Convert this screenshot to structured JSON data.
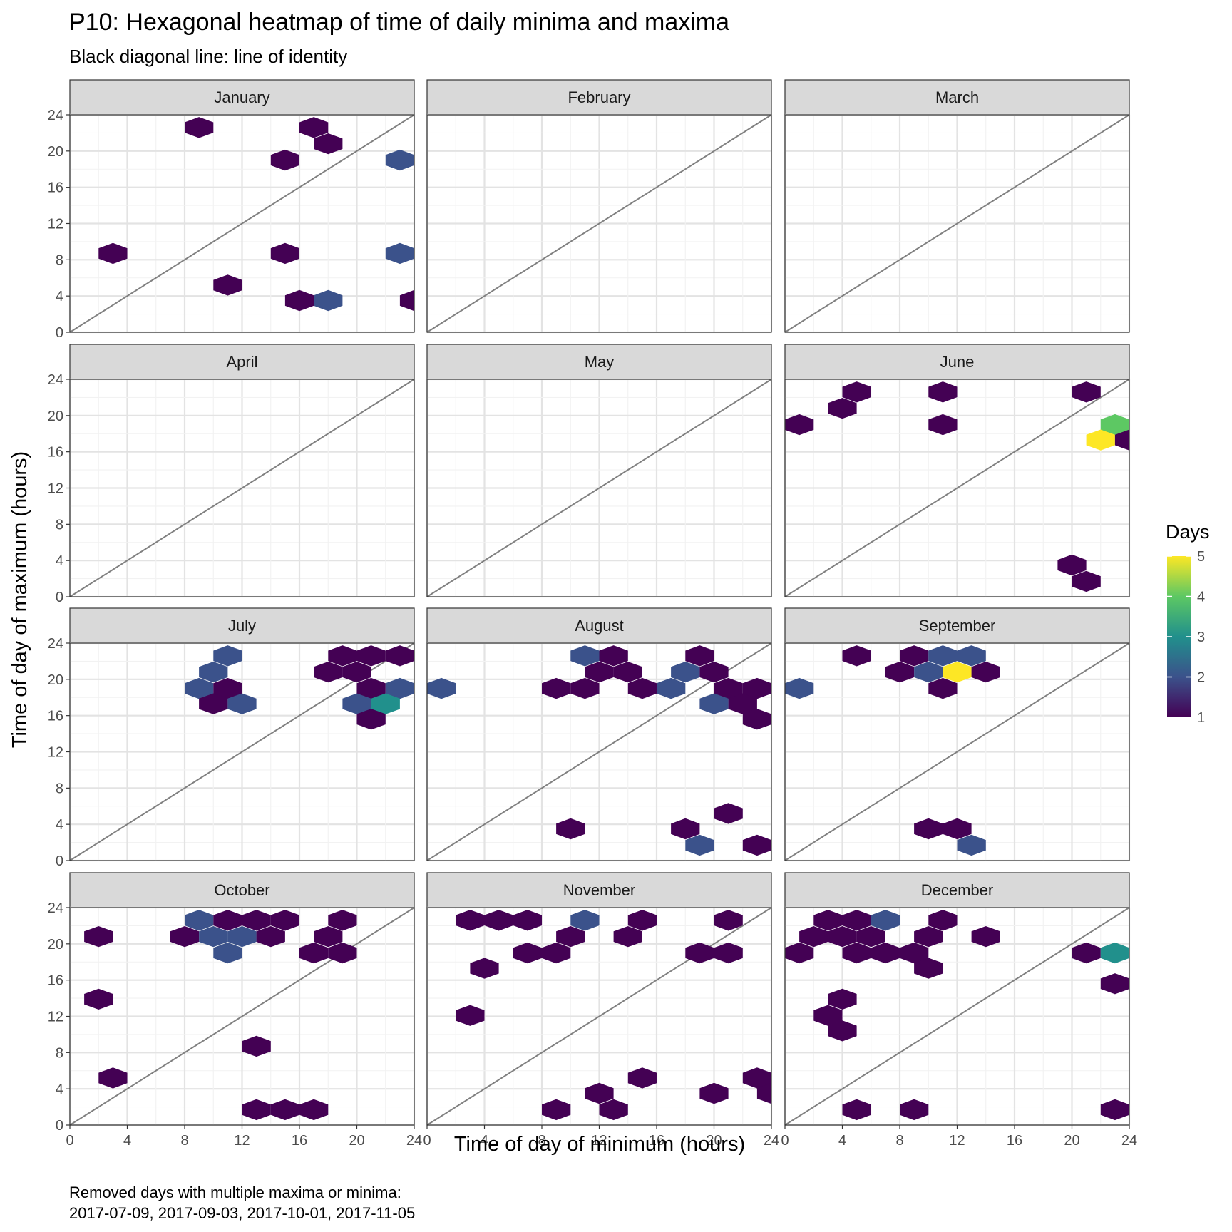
{
  "chart_data": {
    "type": "hexbin-faceted",
    "title": "P10: Hexagonal heatmap of time of daily minima and maxima",
    "subtitle": "Black diagonal line: line of identity",
    "xlabel": "Time of day of minimum (hours)",
    "ylabel": "Time of day of maximum (hours)",
    "xlim": [
      0,
      24
    ],
    "ylim": [
      0,
      24
    ],
    "xticks": [
      "0",
      "4",
      "8",
      "12",
      "16",
      "20",
      "24"
    ],
    "yticks": [
      "0",
      "4",
      "8",
      "12",
      "16",
      "20",
      "24"
    ],
    "grid": true,
    "identity_line": true,
    "legend": {
      "title": "Days",
      "position": "right",
      "ticks": [
        "1",
        "2",
        "3",
        "4",
        "5"
      ],
      "min": 1,
      "max": 5,
      "colors": [
        "#440154",
        "#3b528b",
        "#21908c",
        "#5dc863",
        "#fde725"
      ]
    },
    "caption": [
      "Removed days with multiple maxima or minima:",
      "2017-07-09, 2017-09-03, 2017-10-01, 2017-11-05"
    ],
    "panels": [
      {
        "name": "January",
        "hexes": [
          [
            9,
            22.6,
            1
          ],
          [
            17,
            22.6,
            1
          ],
          [
            18,
            20.8,
            1
          ],
          [
            15,
            19,
            1
          ],
          [
            23,
            19,
            2
          ],
          [
            3,
            8.7,
            1
          ],
          [
            15,
            8.7,
            1
          ],
          [
            23,
            8.7,
            2
          ],
          [
            11,
            5.2,
            1
          ],
          [
            16,
            3.5,
            1
          ],
          [
            18,
            3.5,
            2
          ],
          [
            24,
            3.5,
            1
          ]
        ]
      },
      {
        "name": "February",
        "hexes": []
      },
      {
        "name": "March",
        "hexes": []
      },
      {
        "name": "April",
        "hexes": []
      },
      {
        "name": "May",
        "hexes": []
      },
      {
        "name": "June",
        "hexes": [
          [
            5,
            22.6,
            1
          ],
          [
            11,
            22.6,
            1
          ],
          [
            21,
            22.6,
            1
          ],
          [
            4,
            20.8,
            1
          ],
          [
            1,
            19,
            1
          ],
          [
            11,
            19,
            1
          ],
          [
            23,
            19,
            4
          ],
          [
            22,
            17.3,
            5
          ],
          [
            24,
            17.3,
            1
          ],
          [
            20,
            3.5,
            1
          ],
          [
            21,
            1.7,
            1
          ]
        ]
      },
      {
        "name": "July",
        "hexes": [
          [
            11,
            22.6,
            2
          ],
          [
            19,
            22.6,
            1
          ],
          [
            21,
            22.6,
            1
          ],
          [
            23,
            22.6,
            1
          ],
          [
            10,
            20.8,
            2
          ],
          [
            18,
            20.8,
            1
          ],
          [
            20,
            20.8,
            1
          ],
          [
            9,
            19,
            2
          ],
          [
            11,
            19,
            1
          ],
          [
            21,
            19,
            1
          ],
          [
            23,
            19,
            2
          ],
          [
            10,
            17.3,
            1
          ],
          [
            12,
            17.3,
            2
          ],
          [
            20,
            17.3,
            2
          ],
          [
            22,
            17.3,
            3
          ],
          [
            21,
            15.6,
            1
          ]
        ]
      },
      {
        "name": "August",
        "hexes": [
          [
            11,
            22.6,
            2
          ],
          [
            13,
            22.6,
            1
          ],
          [
            19,
            22.6,
            1
          ],
          [
            12,
            20.8,
            1
          ],
          [
            14,
            20.8,
            1
          ],
          [
            18,
            20.8,
            2
          ],
          [
            20,
            20.8,
            1
          ],
          [
            1,
            19,
            2
          ],
          [
            9,
            19,
            1
          ],
          [
            11,
            19,
            1
          ],
          [
            15,
            19,
            1
          ],
          [
            17,
            19,
            2
          ],
          [
            21,
            19,
            1
          ],
          [
            23,
            19,
            1
          ],
          [
            20,
            17.3,
            2
          ],
          [
            22,
            17.3,
            1
          ],
          [
            23,
            15.6,
            1
          ],
          [
            21,
            5.2,
            1
          ],
          [
            10,
            3.5,
            1
          ],
          [
            18,
            3.5,
            1
          ],
          [
            19,
            1.7,
            2
          ],
          [
            23,
            1.7,
            1
          ]
        ]
      },
      {
        "name": "September",
        "hexes": [
          [
            5,
            22.6,
            1
          ],
          [
            9,
            22.6,
            1
          ],
          [
            11,
            22.6,
            2
          ],
          [
            13,
            22.6,
            2
          ],
          [
            8,
            20.8,
            1
          ],
          [
            10,
            20.8,
            2
          ],
          [
            12,
            20.8,
            5
          ],
          [
            14,
            20.8,
            1
          ],
          [
            1,
            19,
            2
          ],
          [
            11,
            19,
            1
          ],
          [
            10,
            3.5,
            1
          ],
          [
            12,
            3.5,
            1
          ],
          [
            13,
            1.7,
            2
          ]
        ]
      },
      {
        "name": "October",
        "hexes": [
          [
            9,
            22.6,
            2
          ],
          [
            11,
            22.6,
            1
          ],
          [
            13,
            22.6,
            1
          ],
          [
            15,
            22.6,
            1
          ],
          [
            19,
            22.6,
            1
          ],
          [
            2,
            20.8,
            1
          ],
          [
            8,
            20.8,
            1
          ],
          [
            10,
            20.8,
            2
          ],
          [
            12,
            20.8,
            2
          ],
          [
            14,
            20.8,
            1
          ],
          [
            18,
            20.8,
            1
          ],
          [
            11,
            19,
            2
          ],
          [
            17,
            19,
            1
          ],
          [
            19,
            19,
            1
          ],
          [
            2,
            13.9,
            1
          ],
          [
            13,
            8.7,
            1
          ],
          [
            3,
            5.2,
            1
          ],
          [
            13,
            1.7,
            1
          ],
          [
            15,
            1.7,
            1
          ],
          [
            17,
            1.7,
            1
          ]
        ]
      },
      {
        "name": "November",
        "hexes": [
          [
            3,
            22.6,
            1
          ],
          [
            5,
            22.6,
            1
          ],
          [
            7,
            22.6,
            1
          ],
          [
            11,
            22.6,
            2
          ],
          [
            15,
            22.6,
            1
          ],
          [
            21,
            22.6,
            1
          ],
          [
            10,
            20.8,
            1
          ],
          [
            14,
            20.8,
            1
          ],
          [
            7,
            19,
            1
          ],
          [
            9,
            19,
            1
          ],
          [
            19,
            19,
            1
          ],
          [
            21,
            19,
            1
          ],
          [
            4,
            17.3,
            1
          ],
          [
            3,
            12.1,
            1
          ],
          [
            15,
            5.2,
            1
          ],
          [
            23,
            5.2,
            1
          ],
          [
            12,
            3.5,
            1
          ],
          [
            20,
            3.5,
            1
          ],
          [
            24,
            3.5,
            1
          ],
          [
            9,
            1.7,
            1
          ],
          [
            13,
            1.7,
            1
          ]
        ]
      },
      {
        "name": "December",
        "hexes": [
          [
            3,
            22.6,
            1
          ],
          [
            5,
            22.6,
            1
          ],
          [
            7,
            22.6,
            2
          ],
          [
            11,
            22.6,
            1
          ],
          [
            2,
            20.8,
            1
          ],
          [
            4,
            20.8,
            1
          ],
          [
            6,
            20.8,
            1
          ],
          [
            10,
            20.8,
            1
          ],
          [
            14,
            20.8,
            1
          ],
          [
            1,
            19,
            1
          ],
          [
            5,
            19,
            1
          ],
          [
            7,
            19,
            1
          ],
          [
            9,
            19,
            1
          ],
          [
            21,
            19,
            1
          ],
          [
            23,
            19,
            3
          ],
          [
            10,
            17.3,
            1
          ],
          [
            23,
            15.6,
            1
          ],
          [
            4,
            13.9,
            1
          ],
          [
            3,
            12.1,
            1
          ],
          [
            4,
            10.4,
            1
          ],
          [
            5,
            1.7,
            1
          ],
          [
            9,
            1.7,
            1
          ],
          [
            23,
            1.7,
            1
          ]
        ]
      }
    ]
  }
}
